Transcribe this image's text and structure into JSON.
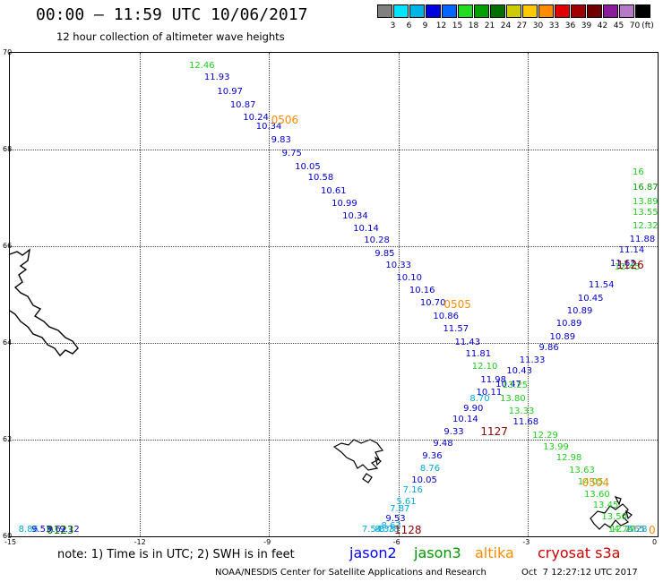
{
  "header": {
    "title": "00:00 – 11:59 UTC 10/06/2017",
    "subtitle": "12 hour collection of altimeter wave heights"
  },
  "legend": {
    "colors": [
      "#808080",
      "#00e5ff",
      "#00b4e6",
      "#0000e0",
      "#0066ff",
      "#22dd22",
      "#00a000",
      "#007000",
      "#cccc00",
      "#ffc800",
      "#ff8c00",
      "#e00000",
      "#a00000",
      "#700000",
      "#8c1a9c",
      "#b87ac8",
      "#000000"
    ],
    "labels": [
      "3",
      "6",
      "9",
      "12",
      "15",
      "18",
      "21",
      "24",
      "27",
      "30",
      "33",
      "36",
      "39",
      "42",
      "45",
      "70"
    ],
    "unit": "(ft)"
  },
  "map": {
    "lon_range": [
      -15,
      0
    ],
    "lat_range": [
      60,
      70
    ],
    "x_ticks": [
      "-15",
      "-12",
      "-9",
      "-6",
      "-3",
      "0"
    ],
    "y_ticks": [
      "60",
      "62",
      "64",
      "66",
      "68",
      "70"
    ],
    "labels": [
      {
        "t": "12.46",
        "lon": -10.85,
        "lat": 69.82,
        "c": "#22cc22"
      },
      {
        "t": "11.93",
        "lon": -10.5,
        "lat": 69.58,
        "c": "#0000cc"
      },
      {
        "t": "10.97",
        "lon": -10.2,
        "lat": 69.28,
        "c": "#0000cc"
      },
      {
        "t": "10.87",
        "lon": -9.9,
        "lat": 69.0,
        "c": "#0000cc"
      },
      {
        "t": "10.24",
        "lon": -9.6,
        "lat": 68.75,
        "c": "#0000cc"
      },
      {
        "t": "10.34",
        "lon": -9.3,
        "lat": 68.55,
        "c": "#0000cc"
      },
      {
        "t": "9.83",
        "lon": -8.95,
        "lat": 68.28,
        "c": "#0000cc"
      },
      {
        "t": "9.75",
        "lon": -8.7,
        "lat": 68.0,
        "c": "#0000cc"
      },
      {
        "t": "10.05",
        "lon": -8.4,
        "lat": 67.72,
        "c": "#0000cc"
      },
      {
        "t": "10.58",
        "lon": -8.1,
        "lat": 67.5,
        "c": "#0000cc"
      },
      {
        "t": "10.61",
        "lon": -7.8,
        "lat": 67.23,
        "c": "#0000cc"
      },
      {
        "t": "10.99",
        "lon": -7.55,
        "lat": 66.97,
        "c": "#0000cc"
      },
      {
        "t": "10.34",
        "lon": -7.3,
        "lat": 66.7,
        "c": "#0000cc"
      },
      {
        "t": "10.14",
        "lon": -7.05,
        "lat": 66.45,
        "c": "#0000cc"
      },
      {
        "t": "10.28",
        "lon": -6.8,
        "lat": 66.2,
        "c": "#0000cc"
      },
      {
        "t": "9.85",
        "lon": -6.55,
        "lat": 65.93,
        "c": "#0000cc"
      },
      {
        "t": "10.33",
        "lon": -6.3,
        "lat": 65.68,
        "c": "#0000cc"
      },
      {
        "t": "10.10",
        "lon": -6.05,
        "lat": 65.43,
        "c": "#0000cc"
      },
      {
        "t": "10.16",
        "lon": -5.75,
        "lat": 65.17,
        "c": "#0000cc"
      },
      {
        "t": "10.70",
        "lon": -5.5,
        "lat": 64.9,
        "c": "#0000cc"
      },
      {
        "t": "10.86",
        "lon": -5.2,
        "lat": 64.63,
        "c": "#0000cc"
      },
      {
        "t": "11.57",
        "lon": -4.97,
        "lat": 64.37,
        "c": "#0000cc"
      },
      {
        "t": "11.43",
        "lon": -4.7,
        "lat": 64.1,
        "c": "#0000cc"
      },
      {
        "t": "11.81",
        "lon": -4.45,
        "lat": 63.85,
        "c": "#0000cc"
      },
      {
        "t": "11.98",
        "lon": -4.1,
        "lat": 63.32,
        "c": "#0000cc"
      },
      {
        "t": "10.11",
        "lon": -4.2,
        "lat": 63.05,
        "c": "#0000cc"
      },
      {
        "t": "9.90",
        "lon": -4.5,
        "lat": 62.73,
        "c": "#0000cc"
      },
      {
        "t": "10.14",
        "lon": -4.75,
        "lat": 62.5,
        "c": "#0000cc"
      },
      {
        "t": "9.33",
        "lon": -4.95,
        "lat": 62.25,
        "c": "#0000cc"
      },
      {
        "t": "9.48",
        "lon": -5.2,
        "lat": 62.0,
        "c": "#0000cc"
      },
      {
        "t": "9.36",
        "lon": -5.45,
        "lat": 61.75,
        "c": "#0000cc"
      },
      {
        "t": "10.05",
        "lon": -5.7,
        "lat": 61.25,
        "c": "#0000cc"
      },
      {
        "t": "9.53",
        "lon": -6.3,
        "lat": 60.45,
        "c": "#0000cc"
      },
      {
        "t": "8.70",
        "lon": -4.35,
        "lat": 62.92,
        "c": "#00aadd"
      },
      {
        "t": "8.76",
        "lon": -5.5,
        "lat": 61.48,
        "c": "#00aadd"
      },
      {
        "t": "7.16",
        "lon": -5.9,
        "lat": 61.03,
        "c": "#00aadd"
      },
      {
        "t": "5.61",
        "lon": -6.05,
        "lat": 60.8,
        "c": "#00aadd"
      },
      {
        "t": "7.87",
        "lon": -6.2,
        "lat": 60.65,
        "c": "#00aadd"
      },
      {
        "t": "8.63",
        "lon": -6.4,
        "lat": 60.3,
        "c": "#00aadd"
      },
      {
        "t": "8.78",
        "lon": -6.45,
        "lat": 59.98,
        "c": "#00aadd"
      },
      {
        "t": "8.33",
        "lon": -6.55,
        "lat": 59.78,
        "c": "#00aadd"
      },
      {
        "t": "7.54",
        "lon": -6.85,
        "lat": 59.55,
        "c": "#00aadd"
      },
      {
        "t": "16.87",
        "lon": 0.45,
        "lat": 67.3,
        "c": "#009900"
      },
      {
        "t": "16",
        "lon": 0.5,
        "lat": 67.62,
        "c": "#22cc22"
      },
      {
        "t": "13.89",
        "lon": 0.2,
        "lat": 67.0,
        "c": "#22cc22"
      },
      {
        "t": "13.55",
        "lon": -0.05,
        "lat": 66.77,
        "c": "#22cc22"
      },
      {
        "t": "12.32",
        "lon": -0.3,
        "lat": 66.5,
        "c": "#22cc22"
      },
      {
        "t": "11.88",
        "lon": -0.65,
        "lat": 66.23,
        "c": "#0000cc"
      },
      {
        "t": "11.14",
        "lon": -0.9,
        "lat": 66.0,
        "c": "#0000cc"
      },
      {
        "t": "11.63",
        "lon": -1.1,
        "lat": 65.73,
        "c": "#0000cc"
      },
      {
        "t": "12.45",
        "lon": -1.0,
        "lat": 65.65,
        "c": "#22cc22"
      },
      {
        "t": "11.54",
        "lon": -1.6,
        "lat": 65.28,
        "c": "#0000cc"
      },
      {
        "t": "10.45",
        "lon": -1.85,
        "lat": 65.0,
        "c": "#0000cc"
      },
      {
        "t": "10.89",
        "lon": -2.1,
        "lat": 64.75,
        "c": "#0000cc"
      },
      {
        "t": "10.89",
        "lon": -2.35,
        "lat": 64.48,
        "c": "#0000cc"
      },
      {
        "t": "10.89",
        "lon": -2.5,
        "lat": 64.2,
        "c": "#0000cc"
      },
      {
        "t": "9.86",
        "lon": -2.75,
        "lat": 63.98,
        "c": "#0000cc"
      },
      {
        "t": "11.33",
        "lon": -3.2,
        "lat": 63.72,
        "c": "#0000cc"
      },
      {
        "t": "10.43",
        "lon": -3.5,
        "lat": 63.5,
        "c": "#0000cc"
      },
      {
        "t": "10.47",
        "lon": -3.75,
        "lat": 63.22,
        "c": "#0000cc"
      },
      {
        "t": "11.68",
        "lon": -3.35,
        "lat": 62.45,
        "c": "#0000cc"
      },
      {
        "t": "12.10",
        "lon": -4.3,
        "lat": 63.6,
        "c": "#22cc22"
      },
      {
        "t": "13.25",
        "lon": -3.6,
        "lat": 63.2,
        "c": "#22cc22"
      },
      {
        "t": "13.80",
        "lon": -3.65,
        "lat": 62.92,
        "c": "#22cc22"
      },
      {
        "t": "13.33",
        "lon": -3.45,
        "lat": 62.67,
        "c": "#22cc22"
      },
      {
        "t": "12.29",
        "lon": -2.9,
        "lat": 62.17,
        "c": "#22cc22"
      },
      {
        "t": "13.99",
        "lon": -2.65,
        "lat": 61.93,
        "c": "#22cc22"
      },
      {
        "t": "12.98",
        "lon": -2.35,
        "lat": 61.7,
        "c": "#22cc22"
      },
      {
        "t": "13.63",
        "lon": -2.05,
        "lat": 61.45,
        "c": "#22cc22"
      },
      {
        "t": "14.05",
        "lon": -1.85,
        "lat": 61.2,
        "c": "#22cc22"
      },
      {
        "t": "13.60",
        "lon": -1.7,
        "lat": 60.95,
        "c": "#22cc22"
      },
      {
        "t": "13.45",
        "lon": -1.5,
        "lat": 60.72,
        "c": "#22cc22"
      },
      {
        "t": "13.50",
        "lon": -1.3,
        "lat": 60.48,
        "c": "#22cc22"
      },
      {
        "t": "14.74",
        "lon": -1.15,
        "lat": 60.23,
        "c": "#22cc22"
      },
      {
        "t": "12.77",
        "lon": -1.1,
        "lat": 60.05,
        "c": "#22cc22"
      },
      {
        "t": "1.65",
        "lon": -0.75,
        "lat": 59.72,
        "c": "#808080"
      },
      {
        "t": "5.28",
        "lon": -0.7,
        "lat": 59.55,
        "c": "#00aadd"
      },
      {
        "t": "8.86",
        "lon": -14.8,
        "lat": 59.78,
        "c": "#00aadd"
      },
      {
        "t": "9.53",
        "lon": -14.5,
        "lat": 59.68,
        "c": "#0000cc"
      },
      {
        "t": "9.62",
        "lon": -14.15,
        "lat": 59.58,
        "c": "#0000cc"
      },
      {
        "t": "9.12",
        "lon": -13.85,
        "lat": 59.43,
        "c": "#0000cc"
      }
    ],
    "pass_times": [
      {
        "t": "0506",
        "lon": -8.95,
        "lat": 68.72,
        "c": "#ff8c00"
      },
      {
        "t": "0505",
        "lon": -4.95,
        "lat": 64.9,
        "c": "#ff8c00"
      },
      {
        "t": "0504",
        "lon": -1.75,
        "lat": 61.23,
        "c": "#ff8c00"
      },
      {
        "t": "1126",
        "lon": -0.95,
        "lat": 65.72,
        "c": "#880000"
      },
      {
        "t": "1127",
        "lon": -4.1,
        "lat": 62.28,
        "c": "#880000"
      },
      {
        "t": "1128",
        "lon": -6.1,
        "lat": 59.55,
        "c": "#880000"
      },
      {
        "t": "0123",
        "lon": -14.15,
        "lat": 59.82,
        "c": "#007700"
      },
      {
        "t": "0",
        "lon": 0.2,
        "lat": 59.55,
        "c": "#ff8c00"
      }
    ]
  },
  "footer": {
    "note": "note: 1) Time is in UTC; 2) SWH is in feet",
    "satellites": [
      {
        "name": "jason2",
        "color": "#0000ff"
      },
      {
        "name": "jason3",
        "color": "#009900"
      },
      {
        "name": "altika",
        "color": "#ff8c00"
      },
      {
        "name": "cryosat s3a",
        "color": "#cc0000"
      }
    ],
    "credit": "NOAA/NESDIS Center for Satellite Applications and Research",
    "timestamp": "Oct  7 12:27:12 UTC 2017"
  }
}
